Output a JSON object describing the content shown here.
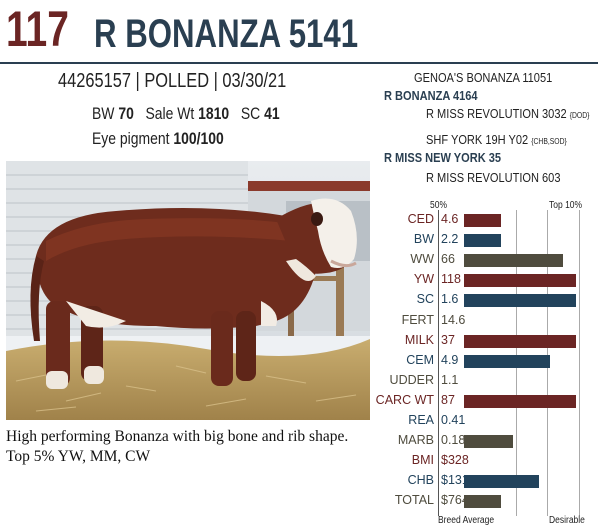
{
  "header": {
    "lot_number": "117",
    "name": "R BONANZA 5141"
  },
  "identity": {
    "reg_line": "44265157 | POLLED | 03/30/21",
    "bw_label": "BW",
    "bw_value": "70",
    "sale_wt_label": "Sale Wt",
    "sale_wt_value": "1810",
    "sc_label": "SC",
    "sc_value": "41",
    "eye_label": "Eye pigment",
    "eye_value": "100/100"
  },
  "pedigree": {
    "sire_sire": "GENOA'S BONANZA 11051",
    "sire": "R BONANZA 4164",
    "sire_dam": "R MISS REVOLUTION 3032",
    "sire_dam_tag": "{DOD}",
    "dam_sire": "SHF YORK 19H Y02",
    "dam_sire_tag": "{CHB,SOD}",
    "dam": "R MISS NEW YORK 35",
    "dam_dam": "R MISS REVOLUTION 603"
  },
  "comment": "High performing Bonanza with big bone and rib shape. Top 5% YW, MM, CW",
  "epd_scale": {
    "top_left": "50%",
    "top_right": "Top 10%",
    "bottom_left": "Breed Average",
    "bottom_right": "Desirable"
  },
  "colors": {
    "maroon": "#6b2524",
    "navy": "#22435c",
    "olive": "#4f4c3e"
  },
  "epds": [
    {
      "label": "CED",
      "value": "4.6",
      "bar": 0.32,
      "color": "maroon",
      "label_color": "maroon"
    },
    {
      "label": "BW",
      "value": "2.2",
      "bar": 0.32,
      "color": "navy",
      "label_color": "navy"
    },
    {
      "label": "WW",
      "value": "66",
      "bar": 0.86,
      "color": "olive",
      "label_color": "olive"
    },
    {
      "label": "YW",
      "value": "118",
      "bar": 0.97,
      "color": "maroon",
      "label_color": "maroon"
    },
    {
      "label": "SC",
      "value": "1.6",
      "bar": 0.97,
      "color": "navy",
      "label_color": "navy"
    },
    {
      "label": "FERT",
      "value": "14.6",
      "bar": 0,
      "color": "olive",
      "label_color": "olive"
    },
    {
      "label": "MILK",
      "value": "37",
      "bar": 0.97,
      "color": "maroon",
      "label_color": "maroon"
    },
    {
      "label": "CEM",
      "value": "4.9",
      "bar": 0.75,
      "color": "navy",
      "label_color": "navy"
    },
    {
      "label": "UDDER",
      "value": "1.1",
      "bar": 0,
      "color": "olive",
      "label_color": "olive"
    },
    {
      "label": "CARC WT",
      "value": "87",
      "bar": 0.97,
      "color": "maroon",
      "label_color": "maroon"
    },
    {
      "label": "REA",
      "value": "0.41",
      "bar": 0,
      "color": "navy",
      "label_color": "navy"
    },
    {
      "label": "MARB",
      "value": "0.18",
      "bar": 0.43,
      "color": "olive",
      "label_color": "olive"
    },
    {
      "label": "BMI",
      "value": "$328",
      "bar": 0,
      "color": "maroon",
      "label_color": "maroon"
    },
    {
      "label": "CHB",
      "value": "$131",
      "bar": 0.65,
      "color": "navy",
      "label_color": "navy"
    },
    {
      "label": "TOTAL",
      "value": "$764",
      "bar": 0.32,
      "color": "olive",
      "label_color": "olive"
    }
  ]
}
